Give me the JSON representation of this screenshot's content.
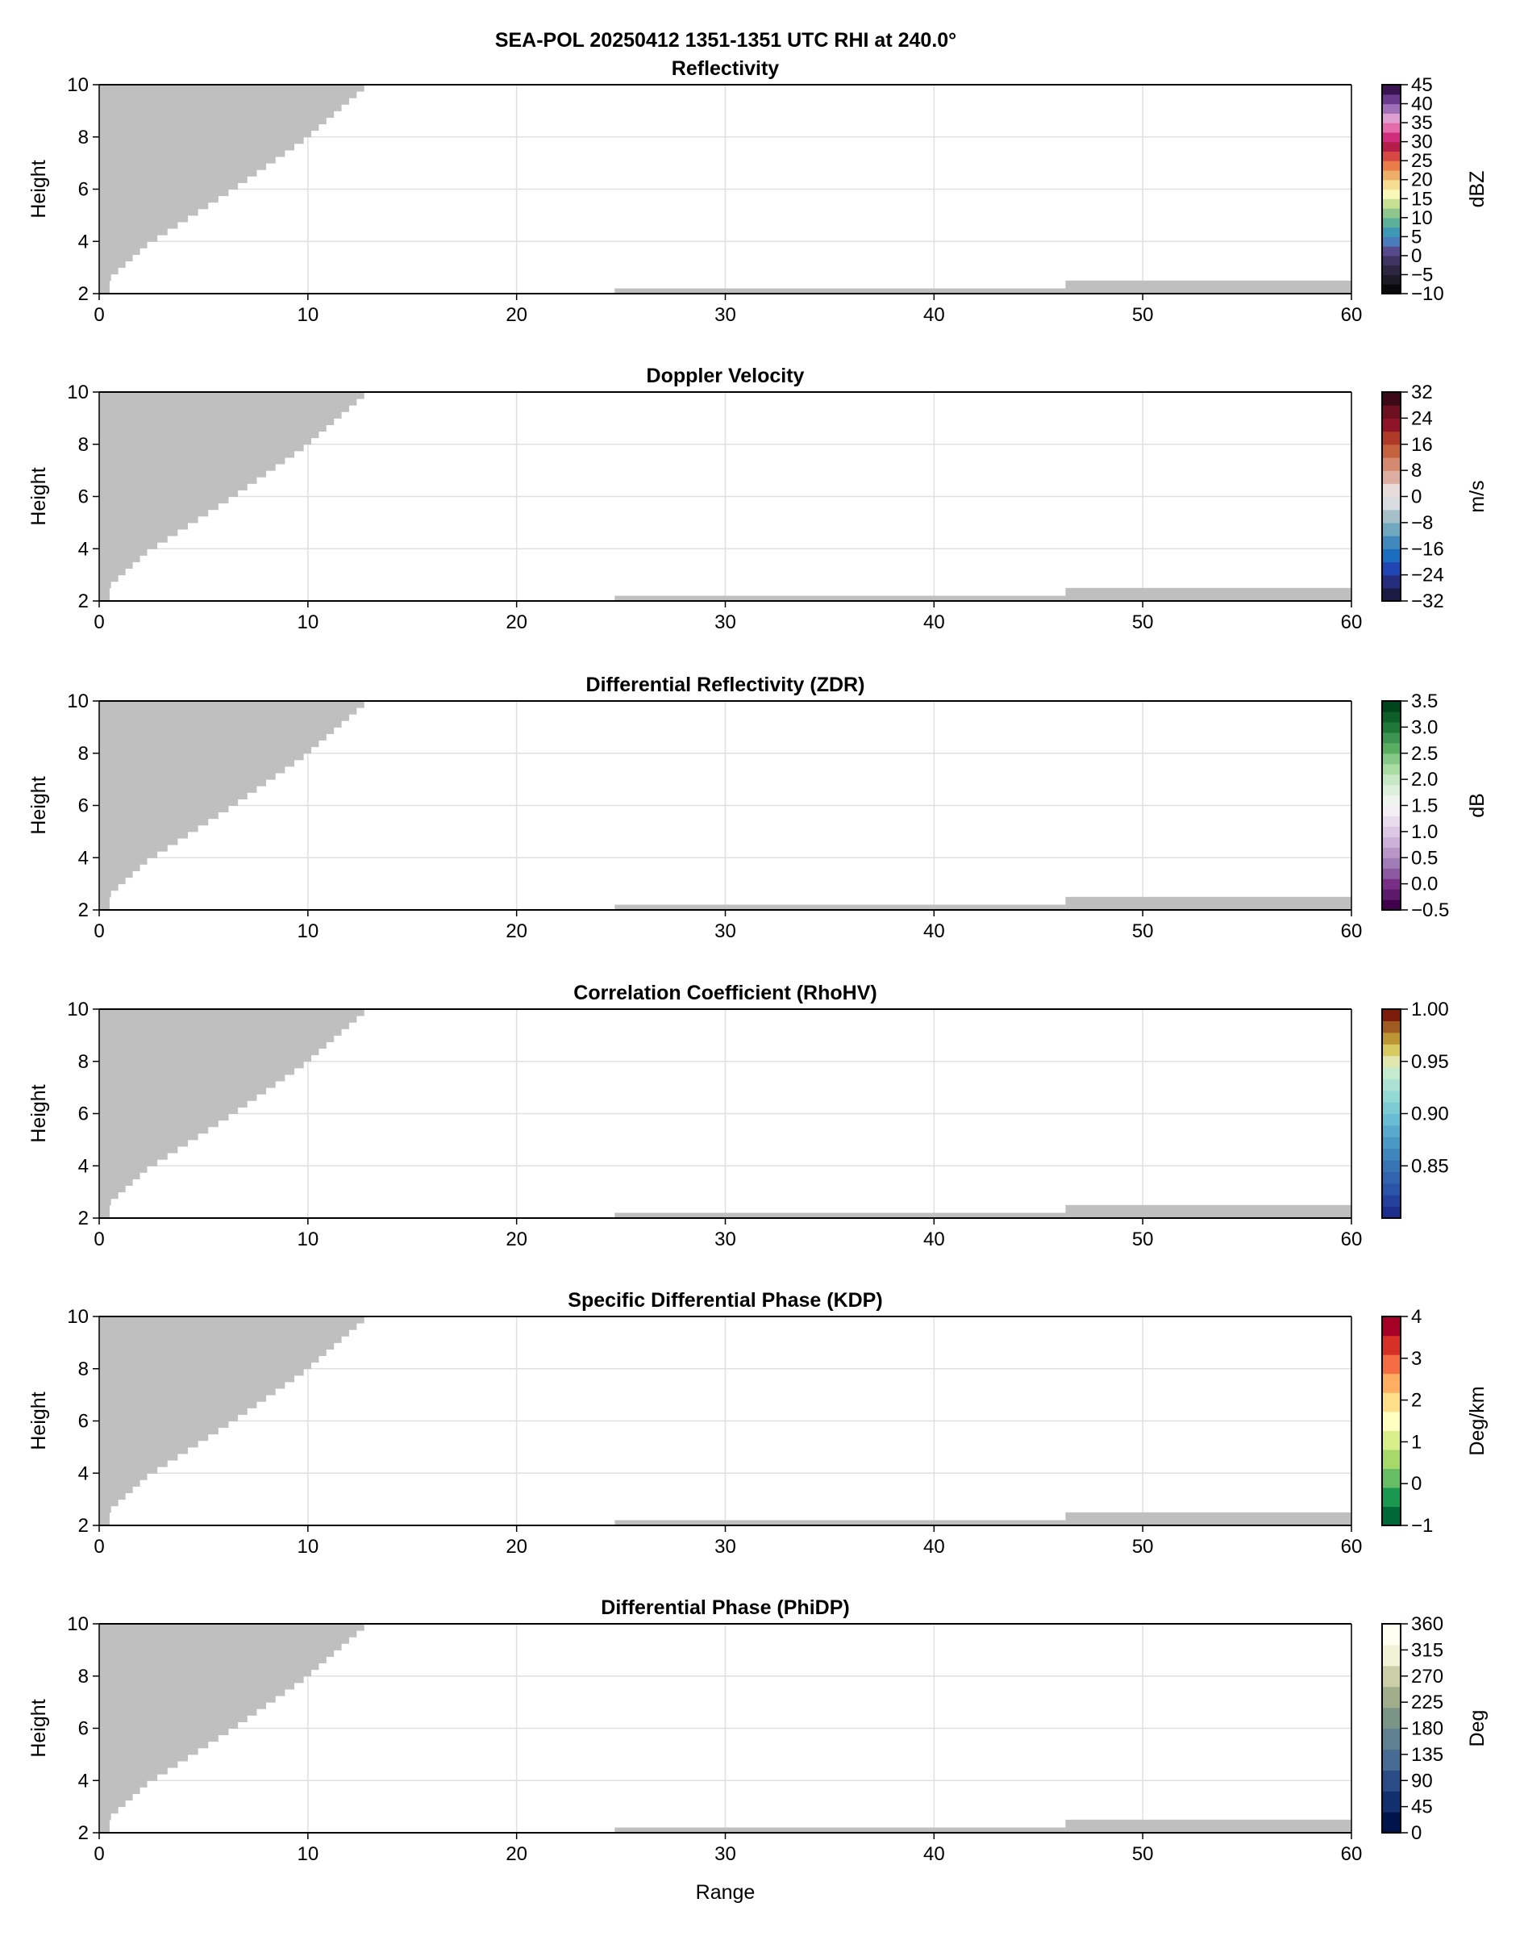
{
  "figure_title": "SEA-POL 20250412 1351-1351 UTC RHI at 240.0°",
  "chart_data": [
    {
      "type": "heatmap",
      "title": "Reflectivity",
      "xlabel": "",
      "ylabel": "Height",
      "xlim": [
        0,
        60
      ],
      "ylim": [
        2,
        10
      ],
      "xticks": [
        "0",
        "10",
        "20",
        "30",
        "40",
        "50",
        "60"
      ],
      "yticks": [
        "2",
        "4",
        "6",
        "8",
        "10"
      ],
      "grid": true,
      "colorbar": {
        "label": "dBZ",
        "range": [
          -10,
          45
        ],
        "ticks": [
          "−10",
          "−5",
          "0",
          "5",
          "10",
          "15",
          "20",
          "25",
          "30",
          "35",
          "40",
          "45"
        ],
        "colors": [
          "#0a0a0c",
          "#1c1a24",
          "#2c2640",
          "#3e3462",
          "#564a8c",
          "#4a7cbc",
          "#3c98b4",
          "#5ab098",
          "#8ec68e",
          "#c4e090",
          "#f8f8b8",
          "#f4dc90",
          "#eeb068",
          "#ea7c48",
          "#d64844",
          "#b41e48",
          "#d02c7c",
          "#e46caa",
          "#de9ed0",
          "#a070b8",
          "#6a3a8c",
          "#3a1450"
        ]
      }
    },
    {
      "type": "heatmap",
      "title": "Doppler Velocity",
      "xlabel": "",
      "ylabel": "Height",
      "xlim": [
        0,
        60
      ],
      "ylim": [
        2,
        10
      ],
      "xticks": [
        "0",
        "10",
        "20",
        "30",
        "40",
        "50",
        "60"
      ],
      "yticks": [
        "2",
        "4",
        "6",
        "8",
        "10"
      ],
      "grid": true,
      "colorbar": {
        "label": "m/s",
        "range": [
          -32,
          32
        ],
        "ticks": [
          "−32",
          "−24",
          "−16",
          "−8",
          "0",
          "8",
          "16",
          "24",
          "32"
        ],
        "colors": [
          "#1a1c44",
          "#252e7c",
          "#2046b4",
          "#1a6cbc",
          "#4088bc",
          "#70a8c0",
          "#a6c0ca",
          "#d8dce0",
          "#e8dcda",
          "#dcaea2",
          "#d48a70",
          "#c4623e",
          "#b03a28",
          "#901428",
          "#6c1020",
          "#3c0a16"
        ]
      }
    },
    {
      "type": "heatmap",
      "title": "Differential Reflectivity (ZDR)",
      "xlabel": "",
      "ylabel": "Height",
      "xlim": [
        0,
        60
      ],
      "ylim": [
        2,
        10
      ],
      "xticks": [
        "0",
        "10",
        "20",
        "30",
        "40",
        "50",
        "60"
      ],
      "yticks": [
        "2",
        "4",
        "6",
        "8",
        "10"
      ],
      "grid": true,
      "colorbar": {
        "label": "dB",
        "range": [
          -0.5,
          3.5
        ],
        "ticks": [
          "−0.5",
          "0.0",
          "0.5",
          "1.0",
          "1.5",
          "2.0",
          "2.5",
          "3.0",
          "3.5"
        ],
        "colors": [
          "#40004b",
          "#5e1a6a",
          "#782e84",
          "#8c5aa0",
          "#a07cb6",
          "#b896c6",
          "#ccb2d8",
          "#dcc8e4",
          "#e8dcec",
          "#f2eef4",
          "#eef4ee",
          "#dcf0dc",
          "#c6e8c4",
          "#a8dca2",
          "#86c886",
          "#5aae62",
          "#3c9450",
          "#207838",
          "#0e5e28",
          "#00441b"
        ]
      }
    },
    {
      "type": "heatmap",
      "title": "Correlation Coefficient (RhoHV)",
      "xlabel": "",
      "ylabel": "Height",
      "xlim": [
        0,
        60
      ],
      "ylim": [
        2,
        10
      ],
      "xticks": [
        "0",
        "10",
        "20",
        "30",
        "40",
        "50",
        "60"
      ],
      "yticks": [
        "2",
        "4",
        "6",
        "8",
        "10"
      ],
      "grid": true,
      "colorbar": {
        "label": "",
        "range": [
          0.8,
          1.0
        ],
        "ticks": [
          "0.85",
          "0.90",
          "0.95",
          "1.00"
        ],
        "colors": [
          "#1c2e8c",
          "#22409c",
          "#2a54a8",
          "#3064ae",
          "#3674b4",
          "#3e86bc",
          "#4a98c4",
          "#58aacc",
          "#68bcd4",
          "#7ccad4",
          "#94dad4",
          "#acE2d4",
          "#c6ecd0",
          "#e0e8b0",
          "#d6ca60",
          "#bc9634",
          "#a05c20",
          "#7c1c0a"
        ]
      }
    },
    {
      "type": "heatmap",
      "title": "Specific Differential Phase (KDP)",
      "xlabel": "",
      "ylabel": "Height",
      "xlim": [
        0,
        60
      ],
      "ylim": [
        2,
        10
      ],
      "xticks": [
        "0",
        "10",
        "20",
        "30",
        "40",
        "50",
        "60"
      ],
      "yticks": [
        "2",
        "4",
        "6",
        "8",
        "10"
      ],
      "grid": true,
      "colorbar": {
        "label": "Deg/km",
        "range": [
          -1,
          4
        ],
        "ticks": [
          "−1",
          "0",
          "1",
          "2",
          "3",
          "4"
        ],
        "colors": [
          "#006837",
          "#1a9850",
          "#66bd63",
          "#a6d96a",
          "#d9ef8b",
          "#ffffbf",
          "#fee08b",
          "#fdae61",
          "#f46d43",
          "#d73027",
          "#a50026"
        ]
      }
    },
    {
      "type": "heatmap",
      "title": "Differential Phase (PhiDP)",
      "xlabel": "Range",
      "ylabel": "Height",
      "xlim": [
        0,
        60
      ],
      "ylim": [
        2,
        10
      ],
      "xticks": [
        "0",
        "10",
        "20",
        "30",
        "40",
        "50",
        "60"
      ],
      "yticks": [
        "2",
        "4",
        "6",
        "8",
        "10"
      ],
      "grid": true,
      "colorbar": {
        "label": "Deg",
        "range": [
          0,
          360
        ],
        "ticks": [
          "0",
          "45",
          "90",
          "135",
          "180",
          "225",
          "270",
          "315",
          "360"
        ],
        "colors": [
          "#00144c",
          "#12306e",
          "#2a4c86",
          "#466c94",
          "#5e8090",
          "#7a9486",
          "#a0ae8c",
          "#cccea8",
          "#f2f2d6",
          "#fffff2"
        ]
      }
    }
  ],
  "mask": {
    "color": "#bfbfbf",
    "blocked_edge": [
      [
        2,
        0.5
      ],
      [
        2.7,
        0.5
      ],
      [
        4,
        2.3
      ],
      [
        6,
        6.2
      ],
      [
        8,
        9.8
      ],
      [
        10,
        12.7
      ]
    ],
    "ground": [
      [
        24.7,
        46.3,
        2.2
      ],
      [
        46.3,
        60,
        2.5
      ]
    ]
  }
}
